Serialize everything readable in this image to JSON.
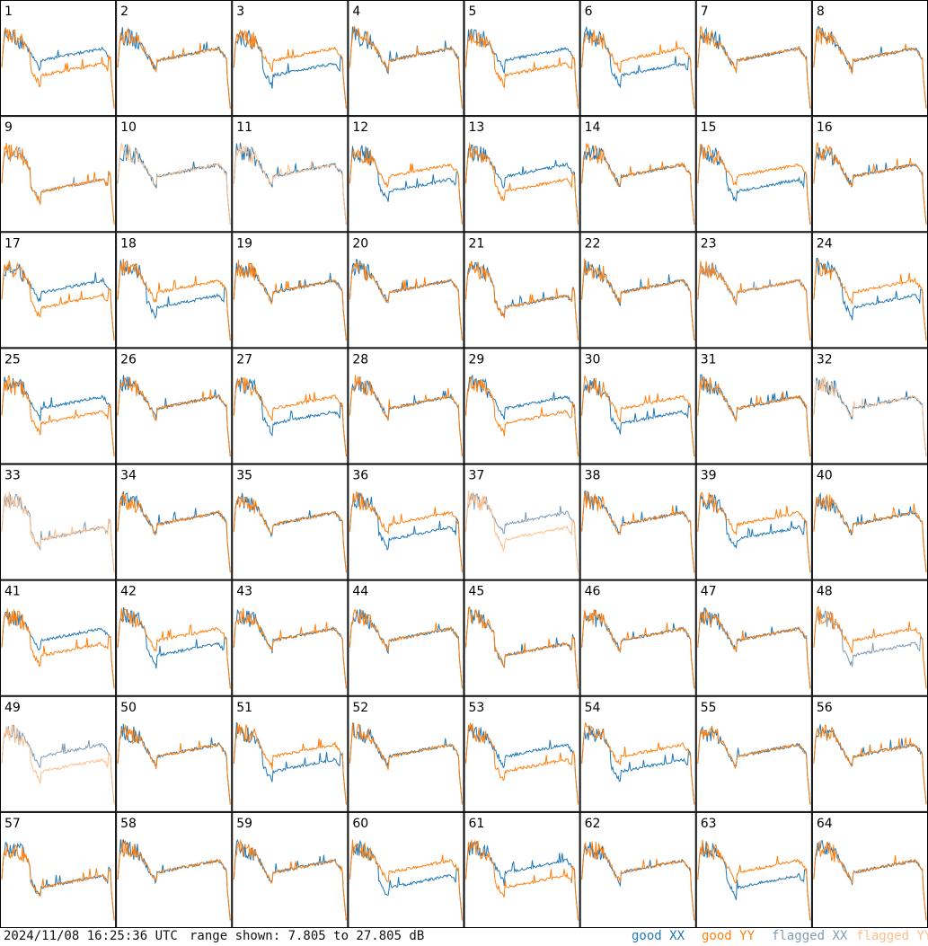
{
  "chart_data": {
    "type": "line",
    "description_units": "dB",
    "panel_numbers": [
      "1",
      "2",
      "3",
      "4",
      "5",
      "6",
      "7",
      "8",
      "9",
      "10",
      "11",
      "12",
      "13",
      "14",
      "15",
      "16",
      "17",
      "18",
      "19",
      "20",
      "21",
      "22",
      "23",
      "24",
      "25",
      "26",
      "27",
      "28",
      "29",
      "30",
      "31",
      "32",
      "33",
      "34",
      "35",
      "36",
      "37",
      "38",
      "39",
      "40",
      "41",
      "42",
      "43",
      "44",
      "45",
      "46",
      "47",
      "48",
      "49",
      "50",
      "51",
      "52",
      "53",
      "54",
      "55",
      "56",
      "57",
      "58",
      "59",
      "60",
      "61",
      "62",
      "63",
      "64"
    ],
    "ylim": [
      7.805,
      27.805
    ],
    "series_legend": [
      "good XX",
      "good YY",
      "flagged XX",
      "flagged YY"
    ],
    "panel_status": {
      "good": "both polarizations good",
      "flagged_xx_panels": [
        9,
        23,
        48
      ],
      "flagged_yy_panels": [
        10,
        11,
        32
      ],
      "flagged_both_panels": [
        33,
        37,
        49
      ]
    }
  },
  "colors": {
    "good_xx": "#1f77b4",
    "good_yy": "#ff7f0e",
    "flagged_xx": "#7f9bb4",
    "flagged_yy": "#ffbf8a",
    "frame": "#000000"
  },
  "footer": {
    "timestamp": "2024/11/08 16:25:36 UTC",
    "range": "range shown: 7.805 to 27.805 dB",
    "legend_good_xx_word": "good",
    "legend_good_xx_pol": "XX",
    "legend_good_yy_word": "good",
    "legend_good_yy_pol": "YY",
    "legend_flag_xx_word": "flagged",
    "legend_flag_xx_pol": "XX",
    "legend_flag_yy_word": "flagged",
    "legend_flag_yy_pol": "YY"
  }
}
